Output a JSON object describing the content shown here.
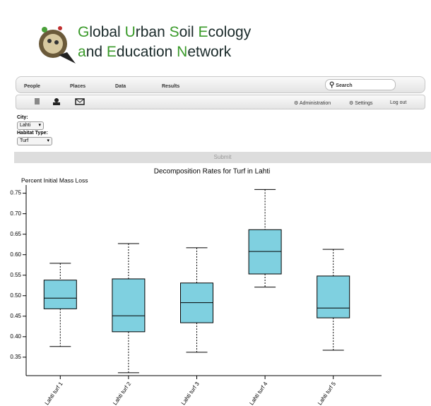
{
  "header": {
    "title_lines": [
      "Global Urban Soil Ecology",
      "and Education Network"
    ]
  },
  "nav": {
    "items": [
      "People",
      "Places",
      "Data",
      "Results"
    ],
    "search": "Search",
    "tools": [
      "Administration",
      "Settings",
      "Log out"
    ]
  },
  "form": {
    "city_label": "City:",
    "city": "Lahti",
    "habitat_label": "Habitat Type:",
    "habitat": "Turf",
    "submit": "Submit"
  },
  "chart_data": {
    "type": "box",
    "title": "Decomposition Rates for Turf in Lahti",
    "y_label": "Percent Initial Mass Loss",
    "categories": [
      "Lahti turf 1",
      "Lahti turf 2",
      "Lahti turf 3",
      "Lahti turf 4",
      "Lahti turf 5"
    ],
    "whisker_low": [
      0.376,
      0.312,
      0.362,
      0.521,
      0.367
    ],
    "q1": [
      0.468,
      0.412,
      0.434,
      0.553,
      0.446
    ],
    "median": [
      0.494,
      0.451,
      0.483,
      0.608,
      0.47
    ],
    "q3": [
      0.538,
      0.541,
      0.531,
      0.661,
      0.548
    ],
    "whisker_high": [
      0.579,
      0.627,
      0.617,
      0.759,
      0.613
    ],
    "color": "#7fd0e0",
    "ylim": [
      0.305,
      0.77
    ],
    "yticks": [
      0.35,
      {
        "value": 0.4,
        "label": "0.40"
      },
      0.45,
      {
        "value": 0.5,
        "label": "0.50"
      },
      0.55,
      {
        "value": 0.6,
        "label": "0.60"
      },
      0.65,
      {
        "value": 0.7,
        "label": "0.70"
      },
      0.75
    ]
  }
}
